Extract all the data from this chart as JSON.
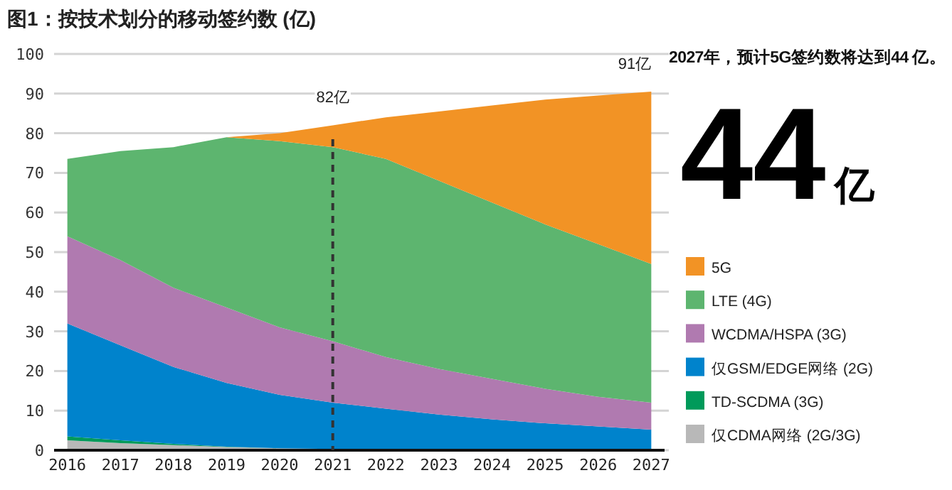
{
  "chart_data": {
    "type": "area",
    "stacked": true,
    "title": "图1：按技术划分的移动签约数 (亿)",
    "x": [
      2016,
      2017,
      2018,
      2019,
      2020,
      2021,
      2022,
      2023,
      2024,
      2025,
      2026,
      2027
    ],
    "xlim": [
      2015.75,
      2027.25
    ],
    "xticks": [
      2016,
      2017,
      2018,
      2019,
      2020,
      2021,
      2022,
      2023,
      2024,
      2025,
      2026,
      2027
    ],
    "ylim": [
      0,
      100
    ],
    "yticks": [
      0,
      10,
      20,
      30,
      40,
      50,
      60,
      70,
      80,
      90,
      100
    ],
    "grid": "y",
    "legend": "right",
    "series": [
      {
        "name": "仅CDMA网络 (2G/3G)",
        "color": "#b8b8b8",
        "values": [
          2.5,
          1.8,
          1.3,
          0.8,
          0.5,
          0.3,
          0.2,
          0.1,
          0.1,
          0,
          0,
          0
        ]
      },
      {
        "name": "TD-SCDMA (3G)",
        "color": "#009a5a",
        "values": [
          1.0,
          0.7,
          0.3,
          0.1,
          0,
          0,
          0,
          0,
          0,
          0,
          0,
          0
        ]
      },
      {
        "name": "仅GSM/EDGE网络 (2G)",
        "color": "#0083cc",
        "values": [
          28.5,
          24,
          19.4,
          16.1,
          13.5,
          11.7,
          10.3,
          8.9,
          7.7,
          6.8,
          6,
          5.2
        ]
      },
      {
        "name": "WCDMA/HSPA (3G)",
        "color": "#b07ab0",
        "values": [
          22,
          21.5,
          20,
          19,
          17,
          15.5,
          13,
          11.5,
          10.2,
          8.7,
          7.5,
          6.8
        ]
      },
      {
        "name": "LTE (4G)",
        "color": "#5db56f",
        "values": [
          19.5,
          27.5,
          35.5,
          43,
          47,
          49,
          50,
          47.5,
          44.5,
          41.5,
          38.5,
          35
        ]
      },
      {
        "name": "5G",
        "color": "#f29325",
        "values": [
          0,
          0,
          0,
          0,
          2,
          5.5,
          10.5,
          17.5,
          24.5,
          31.5,
          37.5,
          43.5
        ]
      }
    ],
    "ref_lines": [
      {
        "axis": "x",
        "value": 2021,
        "color": "#333333",
        "line_style": "dashed"
      }
    ],
    "annotations": [
      {
        "text": "82亿",
        "x": 2021,
        "y": 82
      },
      {
        "text": "91亿",
        "x": 2027,
        "y": 90.5
      },
      "2027年，预计5G签约数将达到44 亿。",
      "44亿"
    ]
  }
}
